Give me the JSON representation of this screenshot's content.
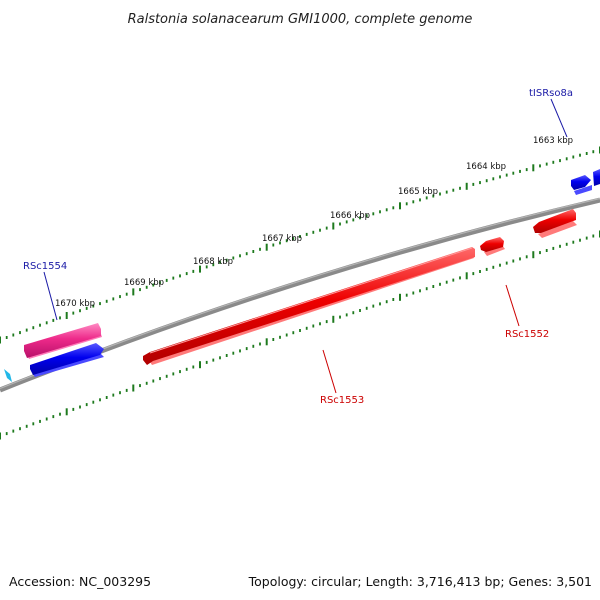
{
  "title": "Ralstonia solanacearum GMI1000, complete genome",
  "footer": {
    "accession": "Accession: NC_003295",
    "info": "Topology: circular; Length: 3,716,413 bp; Genes: 3,501"
  },
  "kbp_ticks": [
    "1663 kbp",
    "1664 kbp",
    "1665 kbp",
    "1666 kbp",
    "1667 kbp",
    "1668 kbp",
    "1669 kbp",
    "1670 kbp"
  ],
  "genes": [
    {
      "name": "tISRso8a",
      "color": "#1a1aa6",
      "strand": "forward"
    },
    {
      "name": "RSc1554",
      "color": "#1a1aa6",
      "strand": "forward"
    },
    {
      "name": "RSc1553",
      "color": "#cc0000",
      "strand": "reverse"
    },
    {
      "name": "RSc1552",
      "color": "#cc0000",
      "strand": "reverse"
    }
  ],
  "colors": {
    "backbone": "#808080",
    "tick": "#1e7a1e",
    "forward_gene": "#0000ee",
    "reverse_gene": "#ee0000",
    "rna_gene": "#ee2a8a",
    "marker": "#22b8e8"
  }
}
